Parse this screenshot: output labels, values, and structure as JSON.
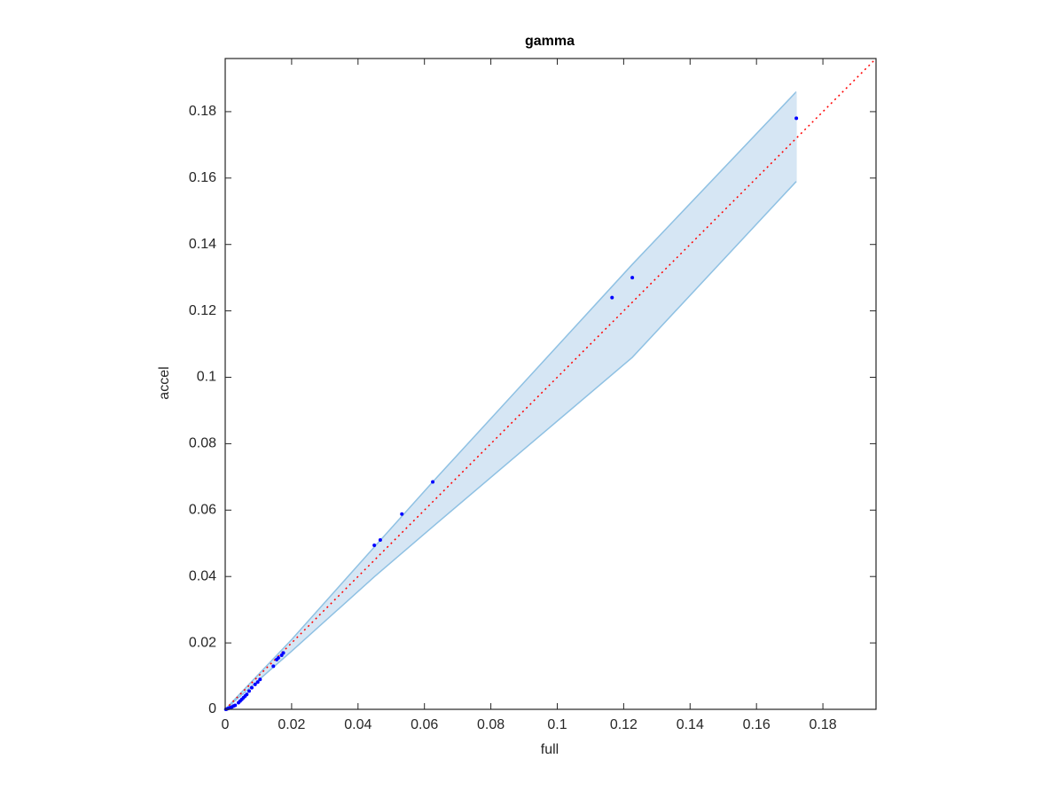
{
  "chart_data": {
    "type": "scatter",
    "title": "gamma",
    "x_label": "full",
    "y_label": "accel",
    "x": [
      0.172,
      0.1226,
      0.1165,
      0.0625,
      0.0532,
      0.0467,
      0.0449,
      0.0175,
      0.017,
      0.016,
      0.0155,
      0.0145,
      0.0105,
      0.0098,
      0.009,
      0.008,
      0.0072,
      0.0065,
      0.006,
      0.0055,
      0.005,
      0.0045,
      0.004,
      0.003,
      0.0025,
      0.002,
      0.0015,
      0.001,
      0.0005,
      0.0002
    ],
    "values": [
      0.178,
      0.13,
      0.124,
      0.0685,
      0.0588,
      0.051,
      0.0494,
      0.017,
      0.0163,
      0.0155,
      0.015,
      0.013,
      0.009,
      0.0082,
      0.0075,
      0.0065,
      0.0055,
      0.0045,
      0.004,
      0.0035,
      0.003,
      0.0025,
      0.002,
      0.0012,
      0.001,
      0.0007,
      0.0005,
      0.0003,
      0.0001,
      0
    ],
    "color": "#0000ff",
    "band": {
      "x": [
        0,
        0.02,
        0.045,
        0.0625,
        0.1226,
        0.172
      ],
      "upper": [
        0,
        0.021,
        0.049,
        0.0685,
        0.134,
        0.186
      ],
      "lower": [
        0,
        0.0175,
        0.04,
        0.055,
        0.106,
        0.159
      ],
      "color": "#d6e6f4",
      "edge_color": "#8fc1e3"
    },
    "reference_line": {
      "x": [
        0,
        0.196
      ],
      "y": [
        0,
        0.196
      ],
      "color": "#ff0000"
    },
    "xlim": [
      0,
      0.196
    ],
    "ylim": [
      0,
      0.196
    ],
    "xticks": [
      0,
      0.02,
      0.04,
      0.06,
      0.08,
      0.1,
      0.12,
      0.14,
      0.16,
      0.18
    ],
    "yticks": [
      0,
      0.02,
      0.04,
      0.06,
      0.08,
      0.1,
      0.12,
      0.14,
      0.16,
      0.18
    ],
    "grid": false
  }
}
